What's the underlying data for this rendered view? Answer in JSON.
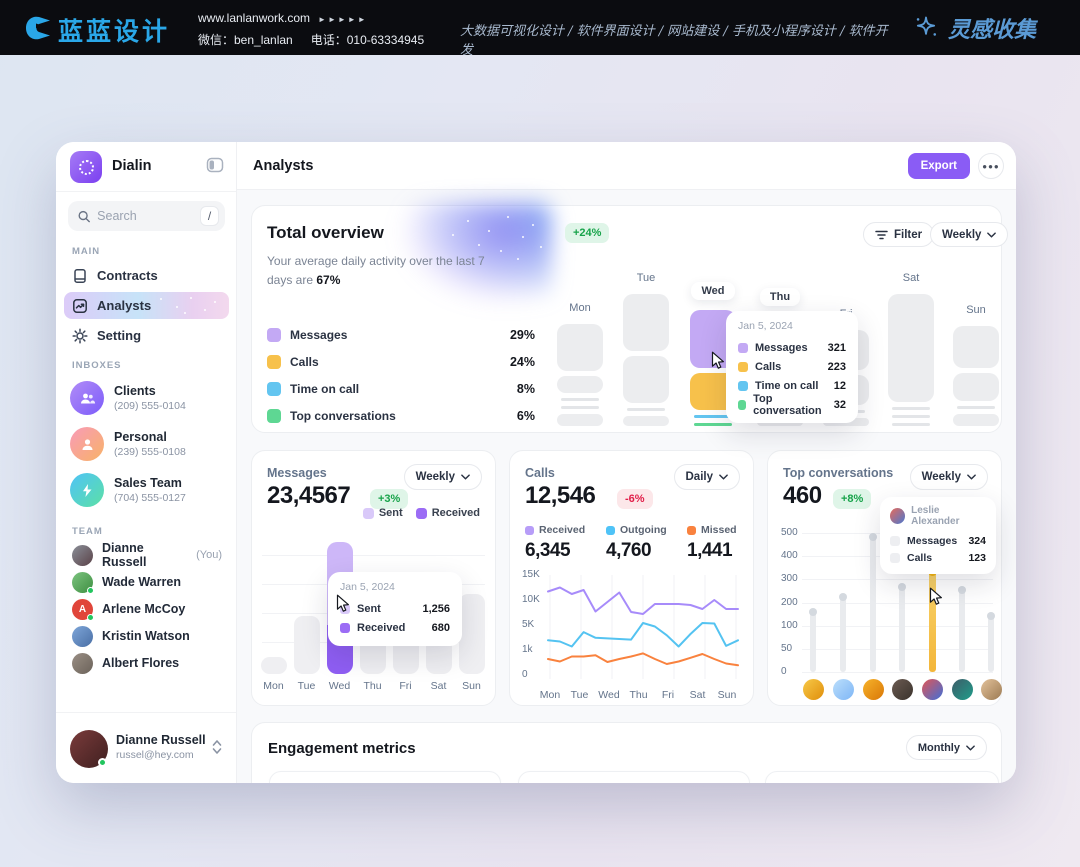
{
  "banner": {
    "brand": "蓝蓝设计",
    "url": "www.lanlanwork.com",
    "arrows": "►►►►►",
    "wechat": "微信：ben_lanlan",
    "phone": "电话：010-63334945",
    "services": "大数据可视化设计 / 软件界面设计 / 网站建设 / 手机及小程序设计 / 软件开发",
    "collect": "灵感收集"
  },
  "sidebar": {
    "app_name": "Dialin",
    "search": {
      "placeholder": "Search",
      "shortcut": "/"
    },
    "sections": {
      "main": "MAIN",
      "inboxes": "INBOXES",
      "team": "TEAM"
    },
    "main_items": [
      {
        "label": "Contracts"
      },
      {
        "label": "Analysts"
      },
      {
        "label": "Setting"
      }
    ],
    "inboxes": [
      {
        "name": "Clients",
        "phone": "(209) 555-0104"
      },
      {
        "name": "Personal",
        "phone": "(239) 555-0108"
      },
      {
        "name": "Sales Team",
        "phone": "(704) 555-0127"
      }
    ],
    "team": [
      {
        "name": "Dianne Russell",
        "suffix": "(You)",
        "initial": ""
      },
      {
        "name": "Wade Warren",
        "suffix": "",
        "initial": ""
      },
      {
        "name": "Arlene McCoy",
        "suffix": "",
        "initial": "A"
      },
      {
        "name": "Kristin Watson",
        "suffix": "",
        "initial": ""
      },
      {
        "name": "Albert Flores",
        "suffix": "",
        "initial": ""
      }
    ],
    "user": {
      "name": "Dianne Russell",
      "email": "russel@hey.com"
    }
  },
  "header": {
    "title": "Analysts",
    "export_label": "Export",
    "more_label": "●●●"
  },
  "overview": {
    "title": "Total overview",
    "subtitle_prefix": "Your average daily activity over the last 7 days are ",
    "subtitle_strong": "67%",
    "growth_badge": "+24%",
    "filter_label": "Filter",
    "period": "Weekly",
    "legend": [
      {
        "label": "Messages",
        "value": "29%",
        "color": "#C3A9F4"
      },
      {
        "label": "Calls",
        "value": "24%",
        "color": "#F7C14B"
      },
      {
        "label": "Time on call",
        "value": "8%",
        "color": "#63C5F0"
      },
      {
        "label": "Top conversations",
        "value": "6%",
        "color": "#5ED793"
      }
    ],
    "tooltip": {
      "date": "Jan 5, 2024",
      "rows": [
        {
          "label": "Messages",
          "value": "321"
        },
        {
          "label": "Calls",
          "value": "223"
        },
        {
          "label": "Time on call",
          "value": "12"
        },
        {
          "label": "Top conversation",
          "value": "32"
        }
      ]
    },
    "chart_data": {
      "type": "bar",
      "columns": [
        {
          "day": "Mon",
          "pill": false,
          "blocks": [
            {
              "h": 47,
              "c": "gray"
            },
            {
              "h": 17,
              "c": "gray"
            },
            {
              "h": 3,
              "c": "line"
            },
            {
              "h": 3,
              "c": "line"
            },
            {
              "h": 12,
              "c": "gray"
            }
          ]
        },
        {
          "day": "Tue",
          "pill": false,
          "blocks": [
            {
              "h": 57,
              "c": "gray"
            },
            {
              "h": 47,
              "c": "gray"
            },
            {
              "h": 3,
              "c": "line"
            },
            {
              "h": 10,
              "c": "gray"
            }
          ]
        },
        {
          "day": "Wed",
          "pill": true,
          "blocks": [
            {
              "h": 58,
              "c": "purple"
            },
            {
              "h": 37,
              "c": "orange"
            },
            {
              "h": 3,
              "c": "blue"
            },
            {
              "h": 3,
              "c": "green"
            }
          ]
        },
        {
          "day": "Thu",
          "pill": true,
          "blocks": [
            {
              "h": 14,
              "c": "gray"
            },
            {
              "h": 62,
              "c": "gray"
            },
            {
              "h": 3,
              "c": "line"
            },
            {
              "h": 3,
              "c": "line"
            },
            {
              "h": 8,
              "c": "gray"
            }
          ]
        },
        {
          "day": "Fri",
          "pill": false,
          "blocks": [
            {
              "h": 40,
              "c": "gray"
            },
            {
              "h": 30,
              "c": "gray"
            },
            {
              "h": 3,
              "c": "line"
            },
            {
              "h": 8,
              "c": "gray"
            }
          ]
        },
        {
          "day": "Sat",
          "pill": false,
          "blocks": [
            {
              "h": 108,
              "c": "gray"
            },
            {
              "h": 3,
              "c": "line"
            },
            {
              "h": 3,
              "c": "line"
            },
            {
              "h": 3,
              "c": "line"
            }
          ]
        },
        {
          "day": "Sun",
          "pill": false,
          "blocks": [
            {
              "h": 42,
              "c": "gray"
            },
            {
              "h": 28,
              "c": "gray"
            },
            {
              "h": 3,
              "c": "line"
            },
            {
              "h": 12,
              "c": "gray"
            }
          ]
        }
      ]
    }
  },
  "messages": {
    "title": "Messages",
    "value": "23,4567",
    "badge": "+3%",
    "period": "Weekly",
    "legend": [
      {
        "label": "Sent",
        "color": "#D9C9F9"
      },
      {
        "label": "Received",
        "color": "#9B6CF5"
      }
    ],
    "tooltip": {
      "date": "Jan 5, 2024",
      "rows": [
        {
          "label": "Sent",
          "value": "1,256"
        },
        {
          "label": "Received",
          "value": "680"
        }
      ]
    },
    "chart_data": {
      "type": "bar",
      "days": [
        "Mon",
        "Tue",
        "Wed",
        "Thu",
        "Fri",
        "Sat",
        "Sun"
      ],
      "heights": [
        17,
        58,
        132,
        38,
        38,
        36,
        80
      ],
      "highlight_index": 2,
      "split": {
        "sent_h": 83,
        "received_h": 49
      }
    }
  },
  "calls": {
    "title": "Calls",
    "value": "12,546",
    "badge": "-6%",
    "period": "Daily",
    "stats": [
      {
        "label": "Received",
        "value": "6,345",
        "color": "#B79DF8"
      },
      {
        "label": "Outgoing",
        "value": "4,760",
        "color": "#4FC3F7"
      },
      {
        "label": "Missed",
        "value": "1,441",
        "color": "#F9823E"
      }
    ],
    "chart_data": {
      "type": "line",
      "yticks": [
        "15K",
        "10K",
        "5K",
        "1k",
        "0"
      ],
      "days": [
        "Mon",
        "Tue",
        "Wed",
        "Thu",
        "Fri",
        "Sat",
        "Sun"
      ],
      "series": [
        {
          "name": "Received",
          "color": "#A78BFA",
          "values": [
            12.5,
            13.3,
            12.0,
            12.8,
            8.5,
            10.4,
            12.3,
            8.4,
            8.0,
            10.0,
            10.0,
            10.0,
            9.8,
            9.0,
            10.8,
            9.0,
            9.0
          ]
        },
        {
          "name": "Outgoing",
          "color": "#54C3F1",
          "values": [
            3.2,
            3.0,
            2.2,
            4.5,
            3.6,
            3.5,
            3.4,
            3.3,
            6.2,
            5.5,
            4.0,
            2.2,
            4.2,
            6.2,
            6.1,
            2.3,
            3.2
          ]
        },
        {
          "name": "Missed",
          "color": "#F9823E",
          "values": [
            0.8,
            0.7,
            0.9,
            0.9,
            0.95,
            0.68,
            0.8,
            0.9,
            1.1,
            0.8,
            0.6,
            0.7,
            0.85,
            1.0,
            0.8,
            0.62,
            0.55
          ]
        }
      ]
    }
  },
  "conversations": {
    "title": "Top conversations",
    "value": "460",
    "badge": "+8%",
    "period": "Weekly",
    "tooltip": {
      "name": "Leslie Alexander",
      "rows": [
        {
          "label": "Messages",
          "value": "324"
        },
        {
          "label": "Calls",
          "value": "123"
        }
      ]
    },
    "chart_data": {
      "type": "lollipop",
      "yticks": [
        "500",
        "400",
        "300",
        "200",
        "100",
        "50",
        "0"
      ],
      "values": [
        160,
        225,
        480,
        265,
        340,
        255,
        140
      ],
      "heights_pct": [
        43,
        54,
        97,
        61,
        73,
        59,
        40
      ],
      "active_index": 4,
      "avatars": [
        [
          "#F7C948",
          "#E08E0B"
        ],
        [
          "#BBDEFB",
          "#7EB6F6"
        ],
        [
          "#F7B32B",
          "#D97706"
        ],
        [
          "#6B5B52",
          "#3A322C"
        ],
        [
          "#E25555",
          "#3E6FD8"
        ],
        [
          "#3E5C68",
          "#1F9D8A"
        ],
        [
          "#E3C29B",
          "#9C7A52"
        ]
      ]
    }
  },
  "engagement": {
    "title": "Engagement metrics",
    "period": "Monthly"
  }
}
